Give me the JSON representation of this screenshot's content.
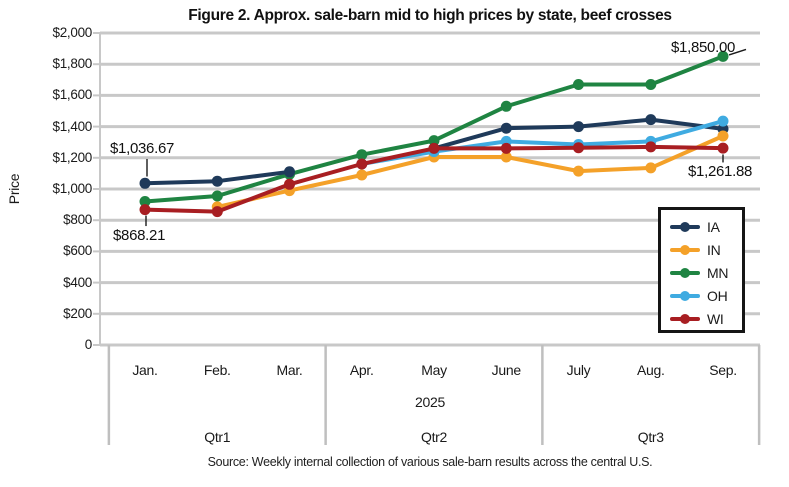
{
  "title": "Figure 2. Approx. sale-barn mid to high prices by state, beef crosses",
  "source": "Source: Weekly internal collection of various sale-barn results across the central U.S.",
  "chart_data": {
    "type": "line",
    "title": "Figure 2. Approx. sale-barn mid to high prices by state, beef crosses",
    "xlabel": "",
    "ylabel": "Price",
    "ylim": [
      0,
      2000
    ],
    "ytick_step": 200,
    "ytick_labels": [
      "0",
      "$200",
      "$400",
      "$600",
      "$800",
      "$1,000",
      "$1,200",
      "$1,400",
      "$1,600",
      "$1,800",
      "$2,000"
    ],
    "grid": true,
    "legend_position": "middle-right-inside",
    "categories": [
      "Jan.",
      "Feb.",
      "Mar.",
      "Apr.",
      "May",
      "June",
      "July",
      "Aug.",
      "Sep."
    ],
    "year_label": "2025",
    "quarter_labels": [
      "Qtr1",
      "Qtr2",
      "Qtr3"
    ],
    "series": [
      {
        "name": "IA",
        "color": "#1F3A5A",
        "values": [
          1036.67,
          1050,
          1110,
          null,
          1260,
          1390,
          1400,
          1445,
          1385
        ]
      },
      {
        "name": "IN",
        "color": "#F4A129",
        "values": [
          null,
          885,
          990,
          1090,
          1205,
          1205,
          1115,
          1135,
          1340
        ]
      },
      {
        "name": "MN",
        "color": "#1F8442",
        "values": [
          920,
          955,
          1095,
          1220,
          1310,
          1530,
          1670,
          1670,
          1850
        ]
      },
      {
        "name": "OH",
        "color": "#3FABE1",
        "values": [
          null,
          null,
          null,
          1160,
          1240,
          1305,
          1285,
          1305,
          1435
        ]
      },
      {
        "name": "WI",
        "color": "#A81E22",
        "values": [
          868.21,
          855,
          1030,
          1160,
          1260,
          1260,
          1265,
          1270,
          1261.88
        ]
      }
    ],
    "annotations": [
      {
        "text": "$1,036.67",
        "series": "IA",
        "category": "Jan.",
        "value": 1036.67
      },
      {
        "text": "$868.21",
        "series": "WI",
        "category": "Jan.",
        "value": 868.21
      },
      {
        "text": "$1,850.00",
        "series": "MN",
        "category": "Sep.",
        "value": 1850
      },
      {
        "text": "$1,261.88",
        "series": "WI",
        "category": "Sep.",
        "value": 1261.88
      }
    ]
  }
}
